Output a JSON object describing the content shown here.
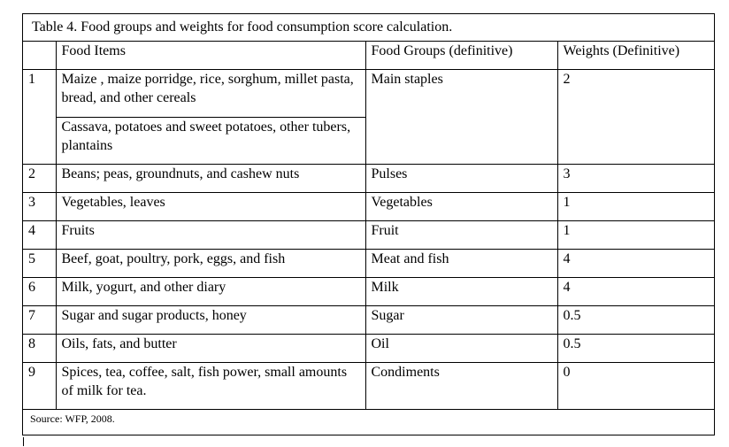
{
  "table": {
    "caption": "Table 4. Food groups and weights for food consumption score calculation.",
    "headers": [
      "",
      "Food Items",
      "Food Groups (definitive)",
      "Weights (Definitive)"
    ],
    "row1": {
      "number": "1",
      "items_a": "Maize , maize porridge, rice, sorghum, millet pasta, bread, and other cereals",
      "items_b": "Cassava, potatoes and sweet potatoes, other tubers, plantains",
      "group": "Main staples",
      "weight": "2"
    },
    "rows": [
      {
        "number": "2",
        "items": "Beans; peas, groundnuts, and cashew nuts",
        "group": "Pulses",
        "weight": "3"
      },
      {
        "number": "3",
        "items": "Vegetables, leaves",
        "group": "Vegetables",
        "weight": "1"
      },
      {
        "number": "4",
        "items": "Fruits",
        "group": "Fruit",
        "weight": "1"
      },
      {
        "number": "5",
        "items": "Beef, goat, poultry, pork, eggs, and fish",
        "group": "Meat and fish",
        "weight": "4"
      },
      {
        "number": "6",
        "items": "Milk, yogurt, and other diary",
        "group": "Milk",
        "weight": "4"
      },
      {
        "number": "7",
        "items": "Sugar and sugar products, honey",
        "group": "Sugar",
        "weight": "0.5"
      },
      {
        "number": "8",
        "items": "Oils, fats, and butter",
        "group": "Oil",
        "weight": "0.5"
      },
      {
        "number": "9",
        "items": "Spices, tea, coffee, salt, fish power, small amounts of milk for tea.",
        "group": "Condiments",
        "weight": "0"
      }
    ],
    "source": "Source: WFP, 2008."
  }
}
